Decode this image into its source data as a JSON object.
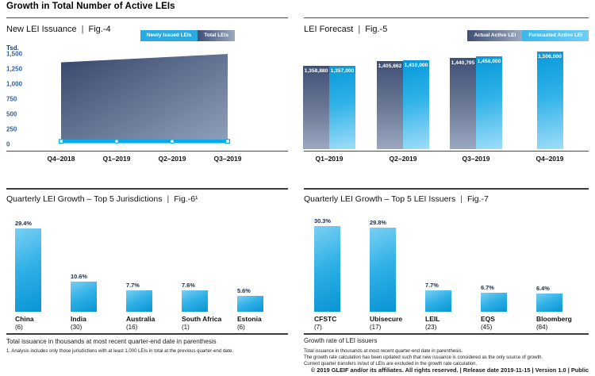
{
  "page": {
    "title": "Growth in Total Number of Active LEIs",
    "separator": "|",
    "footer": "© 2019 GLEIF and/or its affiliates. All rights reserved. | Release date 2019-11-15 | Version 1.0 | Public"
  },
  "colors": {
    "accent_cyan": "#00AEEF",
    "legend_cyan": "#29ABE2",
    "forecast_light": "#6FCDF4",
    "slate_dark": "#3F4F76",
    "slate_mid": "#6B7896",
    "slate_light": "#9BA8C0",
    "area_dark": "#36466B",
    "area_light": "#8FA0BB",
    "bar_blue_top": "#79CFF3",
    "bar_blue_mid": "#2FB0E6",
    "bar_blue_deep": "#0894D4",
    "forecast_top": "#0798DA",
    "forecast_bottom": "#9FDDF8",
    "ytick_blue": "#33639F"
  },
  "chart_data": [
    {
      "id": "fig4",
      "type": "area",
      "title": "New LEI Issuance",
      "fig": "Fig.-4",
      "ylabel": "Tsd.",
      "legend": [
        {
          "label": "Newly Issued LEIs",
          "style": "cyan"
        },
        {
          "label": "Total LEIs",
          "style": "slate"
        }
      ],
      "categories": [
        "Q4–2018",
        "Q1–2019",
        "Q2–2019",
        "Q3–2019"
      ],
      "series": [
        {
          "name": "Total LEIs",
          "values": [
            1360,
            1406,
            1453,
            1500
          ]
        },
        {
          "name": "Newly Issued LEIs",
          "values": [
            50,
            50,
            50,
            50
          ]
        }
      ],
      "yticks": [
        "1,500",
        "1,250",
        "1,000",
        "750",
        "500",
        "250",
        "0"
      ],
      "ytick_values": [
        1500,
        1250,
        1000,
        750,
        500,
        250,
        0
      ],
      "ylim": [
        0,
        1500
      ],
      "grid": false,
      "legend_position": "top-right"
    },
    {
      "id": "fig5",
      "type": "bar",
      "title": "LEI Forecast",
      "fig": "Fig.-5",
      "legend": [
        {
          "label": "Actual Active LEI",
          "style": "slate"
        },
        {
          "label": "Forecasted Active LEI",
          "style": "lightblue"
        }
      ],
      "categories": [
        "Q1–2019",
        "Q2–2019",
        "Q3–2019",
        "Q4–2019"
      ],
      "series": [
        {
          "name": "Actual Active LEI",
          "values": [
            1358880,
            1405662,
            1440795,
            null
          ]
        },
        {
          "name": "Forecasted Active LEI",
          "values": [
            1357000,
            1410000,
            1458000,
            1506000
          ]
        }
      ],
      "ylim": [
        500000,
        1520000
      ],
      "value_labels": true,
      "legend_position": "top-right"
    },
    {
      "id": "fig6",
      "type": "bar",
      "title": "Quarterly LEI Growth – Top 5 Jurisdictions",
      "fig": "Fig.-6¹",
      "categories": [
        "China",
        "India",
        "Australia",
        "South Africa",
        "Estonia"
      ],
      "counts": [
        6,
        30,
        16,
        1,
        6
      ],
      "values": [
        29.4,
        10.6,
        7.7,
        7.6,
        5.6
      ],
      "unit": "%",
      "ylim": [
        0,
        32
      ],
      "notes": {
        "heading": "Total issuance in thousands at most recent quarter-end date in parenthesis",
        "footnote": "1. Analysis includes only those jurisdictions with at least 1,000 LEIs in total at the previous quarter-end date."
      }
    },
    {
      "id": "fig7",
      "type": "bar",
      "title": "Quarterly LEI Growth – Top 5 LEI Issuers",
      "fig": "Fig.-7",
      "categories": [
        "CFSTC",
        "Ubisecure",
        "LEIL",
        "EQS",
        "Bloomberg"
      ],
      "counts": [
        7,
        17,
        23,
        45,
        84
      ],
      "values": [
        30.3,
        29.8,
        7.7,
        6.7,
        6.4
      ],
      "unit": "%",
      "ylim": [
        0,
        32
      ],
      "notes": {
        "heading": "Growth rate of LEI issuers",
        "note1": "Total issuance in thousands at most recent quarter-end date in parenthesis.",
        "note2": "The growth rate calculation has been updated such that new issuance is considered as the only source of growth. Current quarter transfers in/out of LEIs are excluded in the growth rate calculation."
      }
    }
  ]
}
